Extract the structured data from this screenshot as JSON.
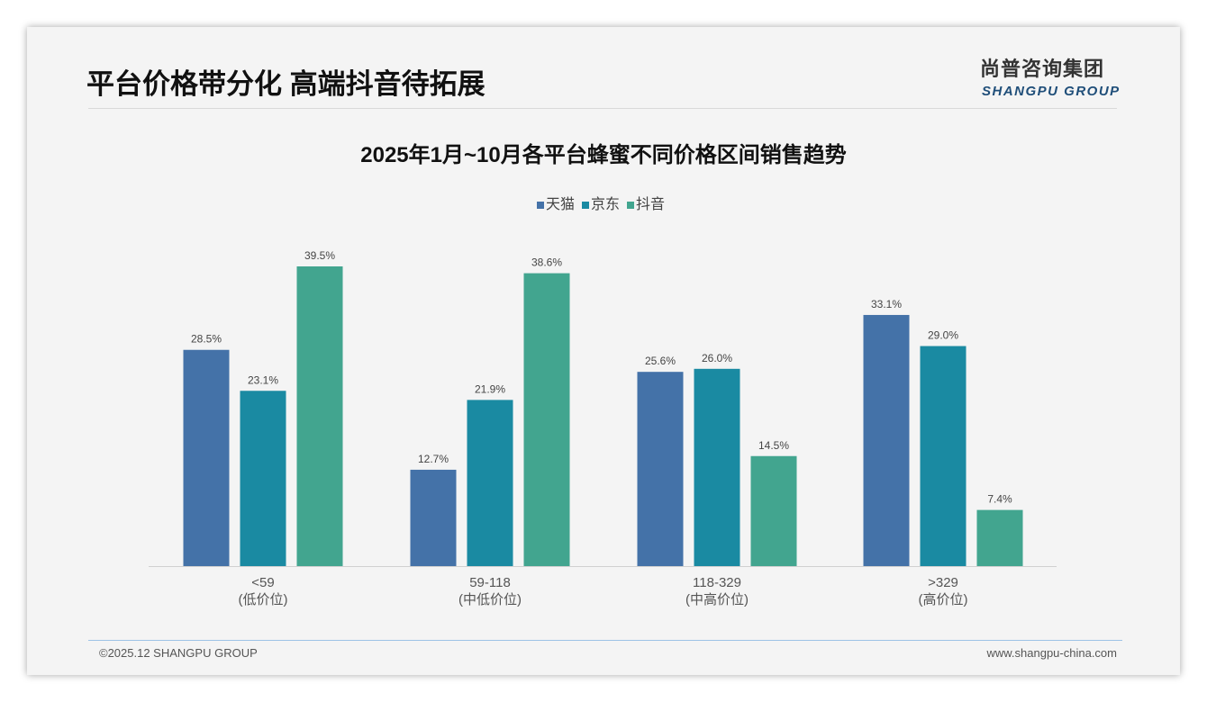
{
  "header": {
    "title": "平台价格带分化 高端抖音待拓展",
    "logo_cn": "尚普咨询集团",
    "logo_en": "SHANGPU GROUP"
  },
  "footer": {
    "copyright": "©2025.12 SHANGPU GROUP",
    "url": "www.shangpu-china.com"
  },
  "chart_data": {
    "type": "bar",
    "title": "2025年1月~10月各平台蜂蜜不同价格区间销售趋势",
    "categories": [
      "<59",
      "59-118",
      "118-329",
      ">329"
    ],
    "category_sublabels": [
      "(低价位)",
      "(中低价位)",
      "(中高价位)",
      "(高价位)"
    ],
    "series": [
      {
        "name": "天猫",
        "color": "#4472a8",
        "values": [
          28.5,
          12.7,
          25.6,
          33.1
        ]
      },
      {
        "name": "京东",
        "color": "#1a8aa2",
        "values": [
          23.1,
          21.9,
          26.0,
          29.0
        ]
      },
      {
        "name": "抖音",
        "color": "#42a58f",
        "values": [
          39.5,
          38.6,
          14.5,
          7.4
        ]
      }
    ],
    "unit": "%",
    "legend": "top",
    "ylim": [
      0,
      40
    ],
    "grid": false
  }
}
